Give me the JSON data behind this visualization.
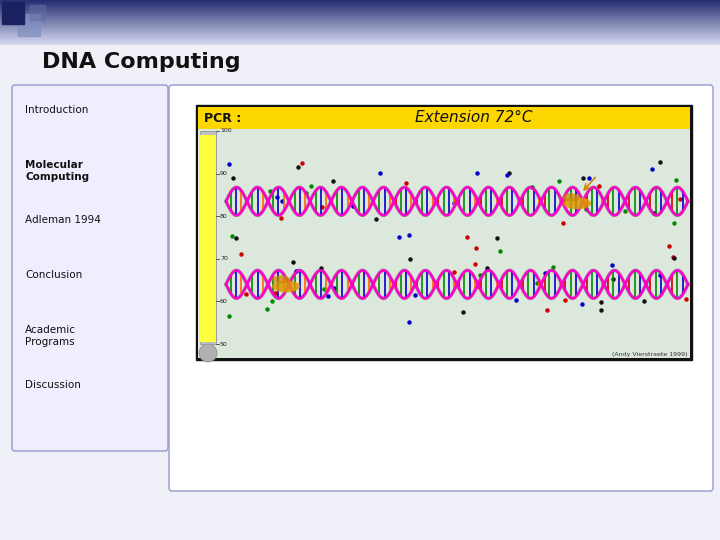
{
  "title": "DNA Computing",
  "nav_items": [
    "Introduction",
    "Molecular\nComputing",
    "Adleman 1994",
    "Conclusion",
    "Academic\nPrograms",
    "Discussion"
  ],
  "nav_bold": [
    false,
    true,
    false,
    false,
    false,
    false
  ],
  "nav_box_color": "#eeeeff",
  "nav_box_border": "#9898cc",
  "content_box_color": "#ffffff",
  "content_box_border": "#9898cc",
  "pcr_bg": "#ffd700",
  "credit_text": "(Andy Vierstraete 1999)",
  "slide_bg": "#f0f0f8",
  "header_sq1": "#1a2060",
  "header_sq2": "#8090c0"
}
